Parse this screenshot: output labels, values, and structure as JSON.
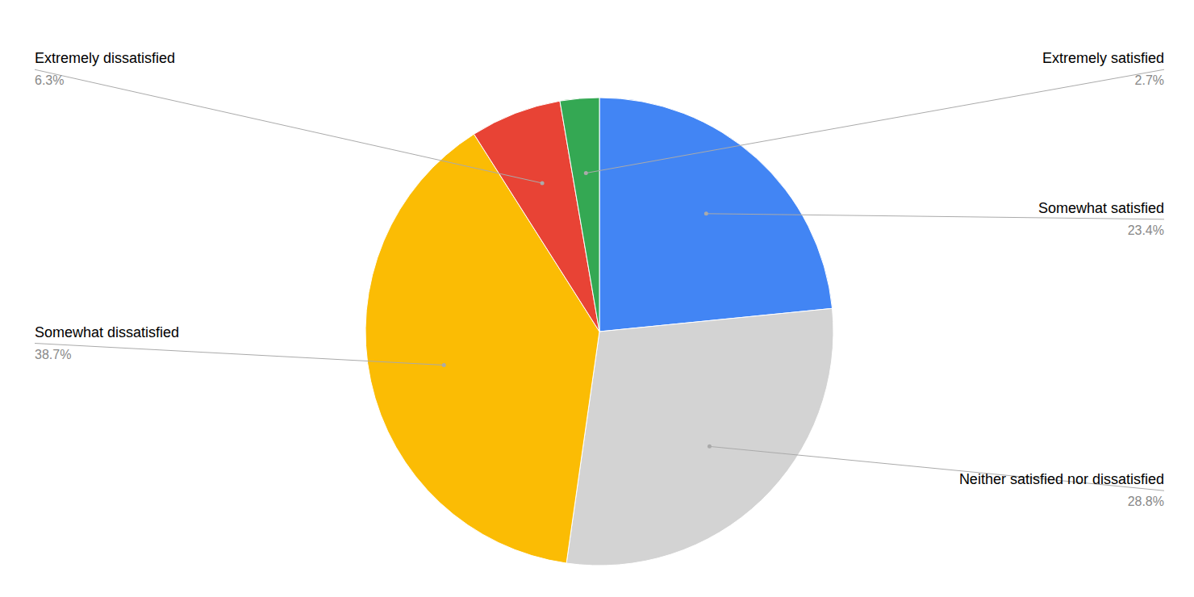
{
  "chart_data": {
    "type": "pie",
    "categories": [
      "Somewhat satisfied",
      "Neither satisfied nor dissatisfied",
      "Somewhat dissatisfied",
      "Extremely dissatisfied",
      "Extremely satisfied"
    ],
    "values": [
      23.4,
      28.8,
      38.7,
      6.3,
      2.7
    ],
    "value_labels": [
      "23.4%",
      "28.8%",
      "38.7%",
      "6.3%",
      "2.7%"
    ],
    "colors": [
      "#4285f4",
      "#d3d3d3",
      "#fbbc04",
      "#e84335",
      "#34a853"
    ],
    "data_labels": true
  }
}
